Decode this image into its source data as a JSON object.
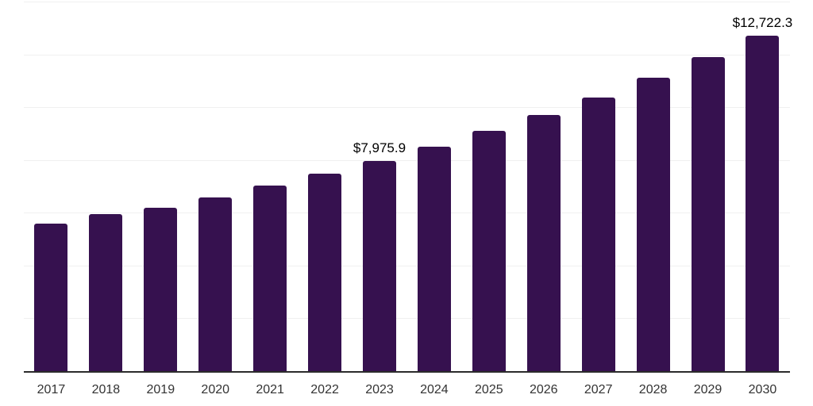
{
  "chart_data": {
    "type": "bar",
    "title": "",
    "xlabel": "",
    "ylabel": "",
    "categories": [
      "2017",
      "2018",
      "2019",
      "2020",
      "2021",
      "2022",
      "2023",
      "2024",
      "2025",
      "2026",
      "2027",
      "2028",
      "2029",
      "2030"
    ],
    "values": [
      5600,
      5950,
      6200,
      6580,
      7020,
      7480,
      7975.9,
      8500,
      9110,
      9690,
      10360,
      11110,
      11890,
      12722.3
    ],
    "point_labels": [
      "",
      "",
      "",
      "",
      "",
      "",
      "$7,975.9",
      "",
      "",
      "",
      "",
      "",
      "",
      "$12,722.3"
    ],
    "ylim": [
      0,
      14000
    ],
    "grid_step": 2000,
    "grid": "horizontal",
    "legend": "none",
    "y_axis_labels_visible": false,
    "colors": {
      "bar": "#36114f",
      "axis_line": "#2b2b2b",
      "gridline": "#f0f0f0",
      "value_label": "#000000",
      "tick_label": "#333333",
      "background": "#ffffff"
    }
  }
}
